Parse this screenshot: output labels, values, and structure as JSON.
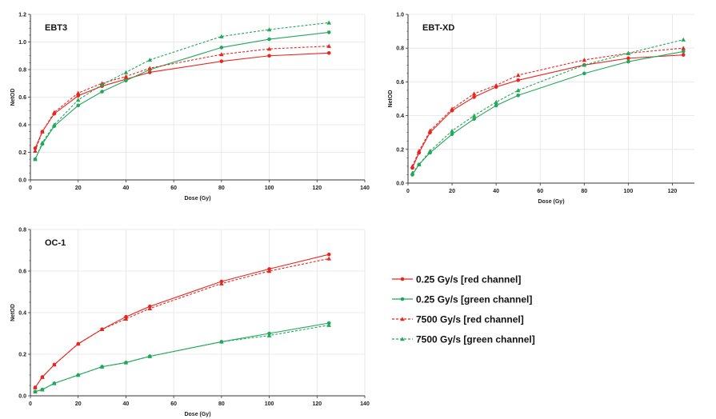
{
  "colors": {
    "red": "#e8261f",
    "green": "#21a85a",
    "grid": "#e4e4e4",
    "axis": "#333333"
  },
  "legend": [
    {
      "label": "0.25 Gy/s [red channel]",
      "color": "red",
      "dashed": false,
      "marker": "circle"
    },
    {
      "label": "0.25 Gy/s [green channel]",
      "color": "green",
      "dashed": false,
      "marker": "circle"
    },
    {
      "label": "7500 Gy/s [red channel]",
      "color": "red",
      "dashed": true,
      "marker": "triangle"
    },
    {
      "label": "7500 Gy/s [green channel]",
      "color": "green",
      "dashed": true,
      "marker": "triangle"
    }
  ],
  "chart_data": [
    {
      "type": "line",
      "title": "EBT3",
      "xlabel": "Dose (Gy)",
      "ylabel": "NetOD",
      "xlim": [
        0,
        140
      ],
      "ylim": [
        0,
        1.2
      ],
      "xticks": [
        "0",
        "20",
        "40",
        "60",
        "80",
        "100",
        "120",
        "140"
      ],
      "yticks": [
        "0.0",
        "0.2",
        "0.4",
        "0.6",
        "0.8",
        "1.0",
        "1.2"
      ],
      "grid": true,
      "x": [
        2,
        5,
        10,
        20,
        30,
        40,
        50,
        80,
        100,
        125
      ],
      "series": [
        {
          "legend": 0,
          "values": [
            0.23,
            0.35,
            0.48,
            0.61,
            0.68,
            0.73,
            0.78,
            0.86,
            0.9,
            0.92
          ]
        },
        {
          "legend": 1,
          "values": [
            0.15,
            0.26,
            0.39,
            0.54,
            0.64,
            0.72,
            0.8,
            0.96,
            1.02,
            1.07
          ]
        },
        {
          "legend": 2,
          "values": [
            0.21,
            0.35,
            0.49,
            0.63,
            0.7,
            0.75,
            0.81,
            0.91,
            0.95,
            0.97
          ]
        },
        {
          "legend": 3,
          "values": [
            0.15,
            0.27,
            0.4,
            0.58,
            0.69,
            0.78,
            0.87,
            1.04,
            1.09,
            1.14
          ]
        }
      ]
    },
    {
      "type": "line",
      "title": "EBT-XD",
      "xlabel": "Dose (Gy)",
      "ylabel": "NetOD",
      "xlim": [
        0,
        130
      ],
      "ylim": [
        0,
        1.0
      ],
      "xticks": [
        "0",
        "20",
        "40",
        "60",
        "80",
        "100",
        "120"
      ],
      "yticks": [
        "0.0",
        "0.2",
        "0.4",
        "0.6",
        "0.8",
        "1.0"
      ],
      "grid": true,
      "x": [
        2,
        5,
        10,
        20,
        30,
        40,
        50,
        80,
        100,
        125
      ],
      "series": [
        {
          "legend": 0,
          "values": [
            0.09,
            0.18,
            0.3,
            0.43,
            0.51,
            0.57,
            0.61,
            0.7,
            0.74,
            0.76
          ]
        },
        {
          "legend": 1,
          "values": [
            0.05,
            0.11,
            0.18,
            0.29,
            0.38,
            0.46,
            0.52,
            0.65,
            0.72,
            0.78
          ]
        },
        {
          "legend": 2,
          "values": [
            0.1,
            0.19,
            0.31,
            0.44,
            0.53,
            0.58,
            0.64,
            0.73,
            0.77,
            0.8
          ]
        },
        {
          "legend": 3,
          "values": [
            0.06,
            0.11,
            0.19,
            0.31,
            0.4,
            0.48,
            0.55,
            0.7,
            0.77,
            0.85
          ]
        }
      ]
    },
    {
      "type": "line",
      "title": "OC-1",
      "xlabel": "Dose (Gy)",
      "ylabel": "NetOD",
      "xlim": [
        0,
        140
      ],
      "ylim": [
        0,
        0.8
      ],
      "xticks": [
        "0",
        "20",
        "40",
        "60",
        "80",
        "100",
        "120",
        "140"
      ],
      "yticks": [
        "0.0",
        "0.2",
        "0.4",
        "0.6",
        "0.8"
      ],
      "grid": true,
      "x": [
        2,
        5,
        10,
        20,
        30,
        40,
        50,
        80,
        100,
        125
      ],
      "series": [
        {
          "legend": 0,
          "values": [
            0.04,
            0.09,
            0.15,
            0.25,
            0.32,
            0.38,
            0.43,
            0.55,
            0.61,
            0.68
          ]
        },
        {
          "legend": 1,
          "values": [
            0.02,
            0.03,
            0.06,
            0.1,
            0.14,
            0.16,
            0.19,
            0.26,
            0.3,
            0.35
          ]
        },
        {
          "legend": 2,
          "values": [
            0.04,
            0.09,
            0.15,
            0.25,
            0.32,
            0.37,
            0.42,
            0.54,
            0.6,
            0.66
          ]
        },
        {
          "legend": 3,
          "values": [
            0.02,
            0.03,
            0.06,
            0.1,
            0.14,
            0.16,
            0.19,
            0.26,
            0.29,
            0.34
          ]
        }
      ]
    }
  ]
}
